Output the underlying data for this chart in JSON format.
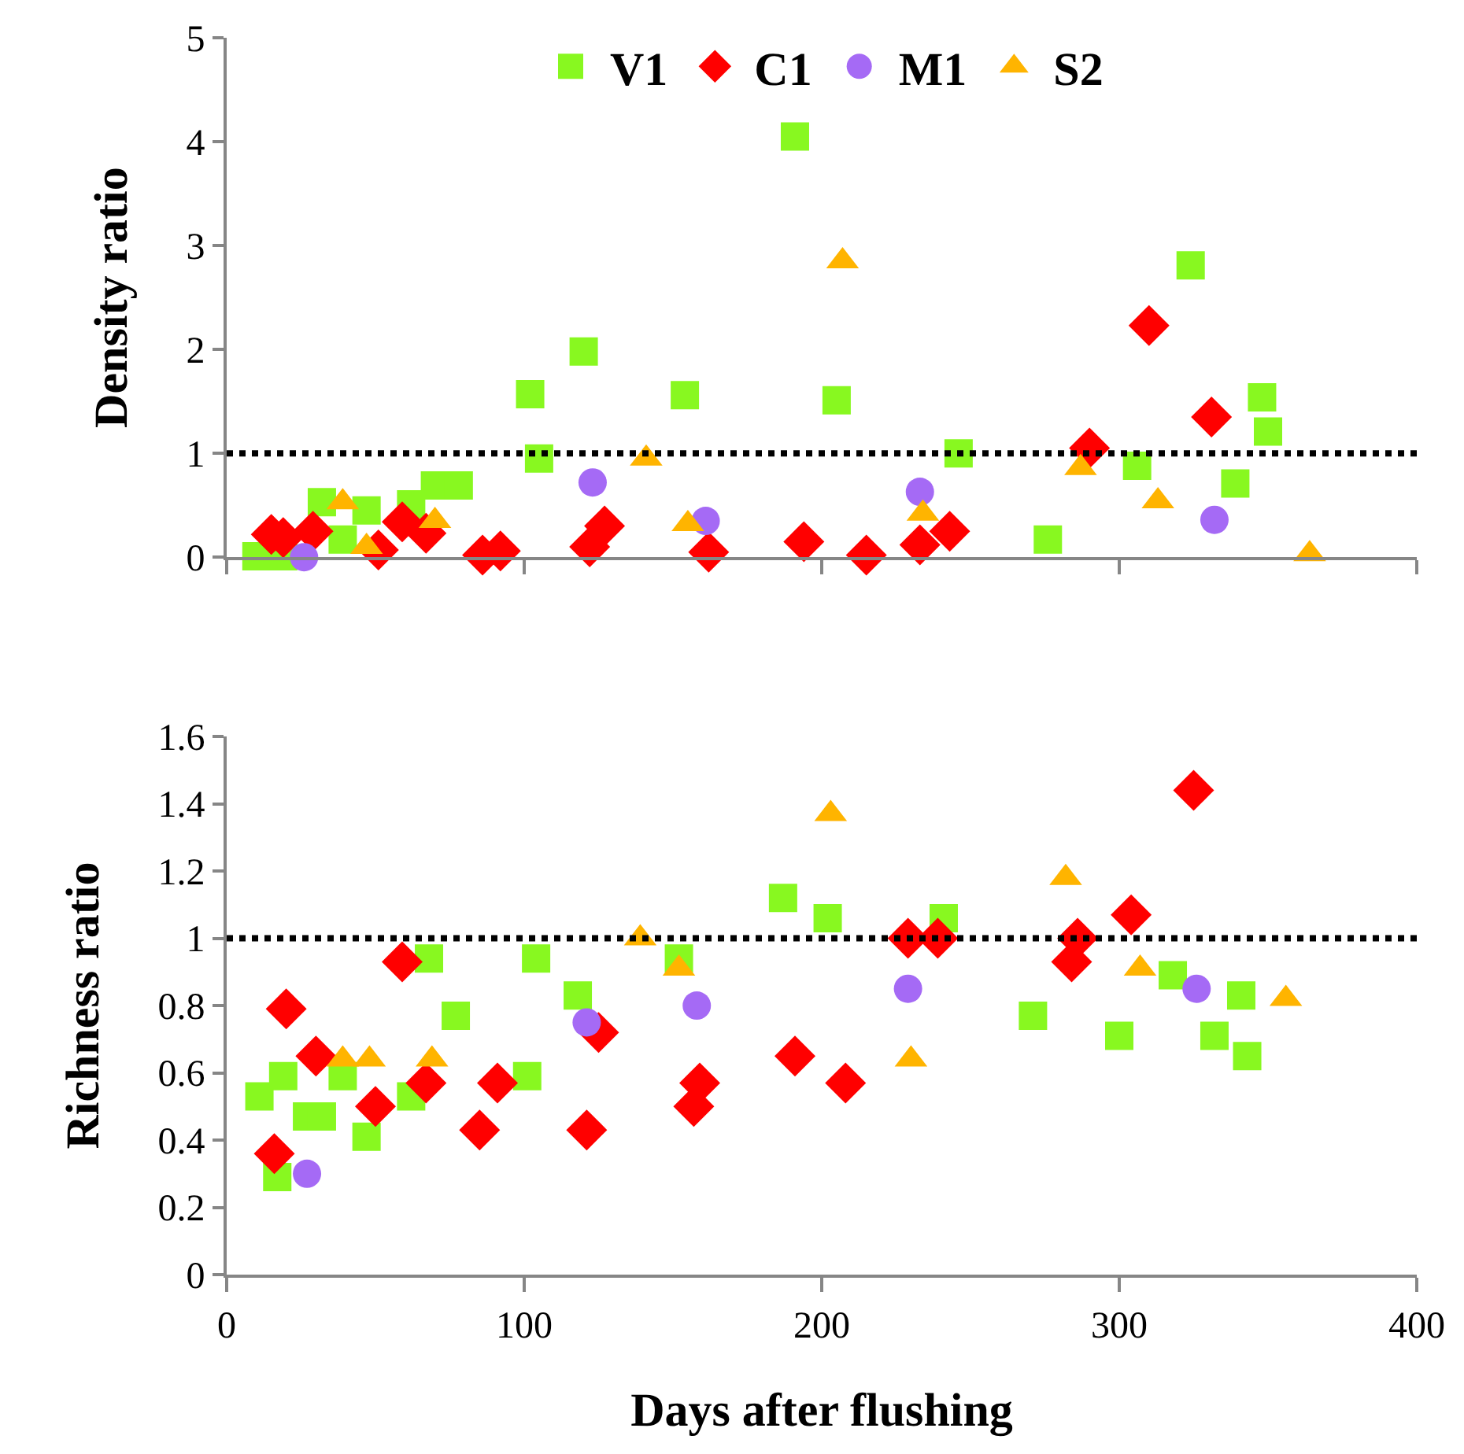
{
  "chart_data": [
    {
      "type": "scatter",
      "ylabel": "Density ratio",
      "xlim": [
        0,
        400
      ],
      "xticks": [
        0,
        100,
        200,
        300,
        400
      ],
      "ylim": [
        0,
        5
      ],
      "yticks": [
        0,
        1,
        2,
        3,
        4,
        5
      ],
      "tick_labels": "y",
      "legend": "top",
      "ref_lines": [
        {
          "axis": "y",
          "value": 1,
          "color": "#000000",
          "line_style": "dotted"
        }
      ],
      "series": [
        {
          "name": "V1",
          "color": "#88f820",
          "marker": "square",
          "x": [
            10,
            19,
            32,
            39,
            47,
            62,
            70,
            78,
            102,
            105,
            120,
            154,
            191,
            205,
            246,
            276,
            306,
            324,
            339,
            348,
            350
          ],
          "values": [
            0.01,
            0.01,
            0.53,
            0.17,
            0.45,
            0.51,
            0.69,
            0.69,
            1.57,
            0.95,
            1.98,
            1.56,
            4.05,
            1.51,
            1.0,
            0.17,
            0.88,
            2.81,
            0.71,
            1.54,
            1.21
          ]
        },
        {
          "name": "C1",
          "color": "#ff0000",
          "marker": "diamond",
          "x": [
            15,
            19,
            29,
            51,
            59,
            67,
            86,
            92,
            122,
            127,
            162,
            194,
            215,
            233,
            243,
            290,
            310,
            331
          ],
          "values": [
            0.22,
            0.19,
            0.25,
            0.07,
            0.34,
            0.23,
            0.02,
            0.06,
            0.1,
            0.3,
            0.05,
            0.15,
            0.02,
            0.12,
            0.25,
            1.05,
            2.23,
            1.35
          ]
        },
        {
          "name": "M1",
          "color": "#a56af5",
          "marker": "circle",
          "x": [
            26,
            123,
            161,
            233,
            332
          ],
          "values": [
            0.0,
            0.72,
            0.35,
            0.63,
            0.36
          ]
        },
        {
          "name": "S2",
          "color": "#ffb400",
          "marker": "triangle",
          "x": [
            39,
            47,
            70,
            141,
            155,
            207,
            234,
            287,
            313,
            364
          ],
          "values": [
            0.53,
            0.1,
            0.35,
            0.95,
            0.32,
            2.85,
            0.42,
            0.86,
            0.54,
            0.03
          ]
        }
      ]
    },
    {
      "type": "scatter",
      "ylabel": "Richness ratio",
      "xlabel": "Days after flushing",
      "xlim": [
        0,
        400
      ],
      "xticks": [
        0,
        100,
        200,
        300,
        400
      ],
      "ylim": [
        0,
        1.6
      ],
      "yticks": [
        0,
        0.2,
        0.4,
        0.6,
        0.8,
        1,
        1.2,
        1.4,
        1.6
      ],
      "ref_lines": [
        {
          "axis": "y",
          "value": 1,
          "color": "#000000",
          "line_style": "dotted"
        }
      ],
      "series": [
        {
          "color": "#88f820",
          "marker": "square",
          "x": [
            11,
            19,
            17,
            27,
            32,
            39,
            47,
            62,
            68,
            77,
            101,
            104,
            118,
            152,
            187,
            202,
            241,
            271,
            300,
            318,
            341,
            332,
            343
          ],
          "values": [
            0.53,
            0.59,
            0.29,
            0.47,
            0.47,
            0.59,
            0.41,
            0.53,
            0.94,
            0.77,
            0.59,
            0.94,
            0.83,
            0.94,
            1.12,
            1.06,
            1.06,
            0.77,
            0.71,
            0.89,
            0.83,
            0.71,
            0.65
          ]
        },
        {
          "color": "#ff0000",
          "marker": "diamond",
          "x": [
            16,
            20,
            30,
            50,
            59,
            67,
            85,
            91,
            121,
            125,
            157,
            159,
            191,
            208,
            229,
            239,
            284,
            286,
            304,
            325
          ],
          "values": [
            0.36,
            0.79,
            0.65,
            0.5,
            0.93,
            0.57,
            0.43,
            0.57,
            0.43,
            0.72,
            0.5,
            0.57,
            0.65,
            0.57,
            1.0,
            1.0,
            0.93,
            1.0,
            1.07,
            1.44
          ]
        },
        {
          "color": "#a56af5",
          "marker": "circle",
          "x": [
            27,
            121,
            158,
            229,
            326
          ],
          "values": [
            0.3,
            0.75,
            0.8,
            0.85,
            0.85
          ]
        },
        {
          "color": "#ffb400",
          "marker": "triangle",
          "x": [
            39,
            48,
            69,
            139,
            152,
            203,
            230,
            282,
            307,
            356
          ],
          "values": [
            0.64,
            0.64,
            0.64,
            1.0,
            0.91,
            1.37,
            0.64,
            1.18,
            0.91,
            0.82
          ]
        }
      ]
    }
  ]
}
